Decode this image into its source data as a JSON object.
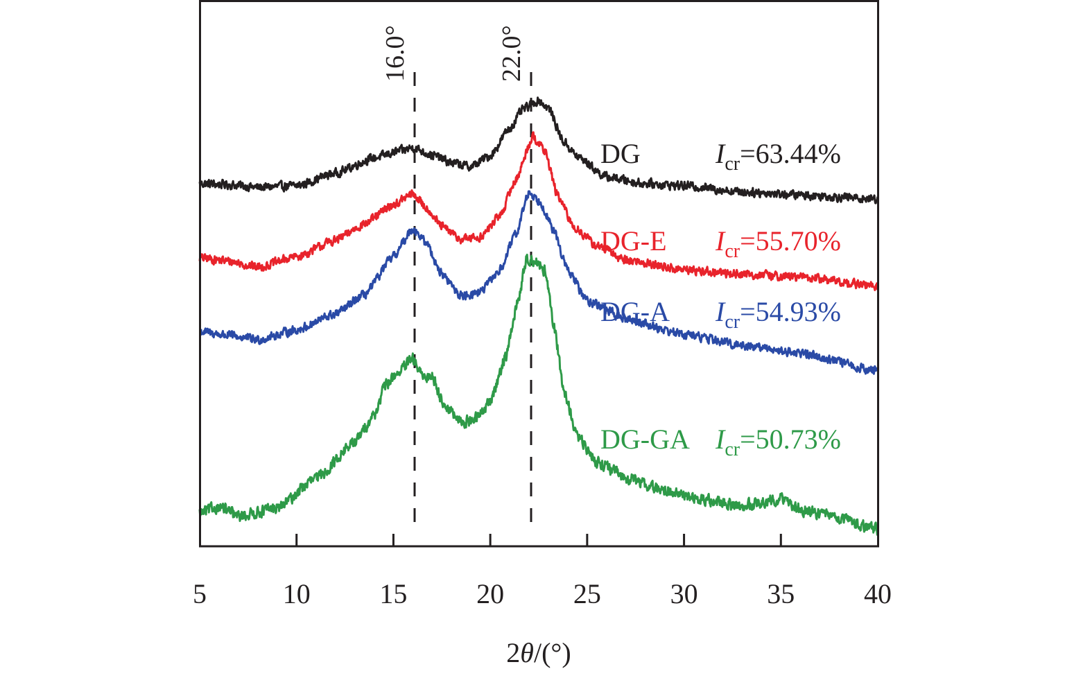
{
  "chart_data": {
    "type": "line",
    "title": "",
    "xlabel": "2θ/(°)",
    "xlabel_parts": {
      "prefix": "2",
      "theta": "θ",
      "suffix": "/(°)"
    },
    "ylabel": "",
    "xlim": [
      5,
      40
    ],
    "ylim": [
      0,
      100
    ],
    "y_ticks_shown": false,
    "grid": false,
    "x_ticks": [
      5,
      10,
      15,
      20,
      25,
      30,
      35,
      40
    ],
    "x_tick_labels": [
      "5",
      "10",
      "15",
      "20",
      "25",
      "30",
      "35",
      "40"
    ],
    "reference_lines": [
      {
        "x": 16.0,
        "label": "16.0°",
        "style": "dashed"
      },
      {
        "x": 22.0,
        "label": "22.0°",
        "style": "dashed"
      }
    ],
    "series": [
      {
        "name": "DG",
        "color": "#231f20",
        "icr_label": "=63.44%",
        "icr_symbol": "I",
        "icr_sub": "cr",
        "points": [
          [
            5,
            66.4
          ],
          [
            6.5,
            66.2
          ],
          [
            8,
            65.7
          ],
          [
            10,
            66.0
          ],
          [
            12,
            68.3
          ],
          [
            14,
            71.1
          ],
          [
            15.5,
            72.5
          ],
          [
            16,
            73.0
          ],
          [
            17,
            71.6
          ],
          [
            18,
            70.2
          ],
          [
            19,
            69.5
          ],
          [
            20,
            71.5
          ],
          [
            21,
            76.5
          ],
          [
            21.7,
            80.0
          ],
          [
            22.5,
            81.6
          ],
          [
            23,
            80.2
          ],
          [
            23.8,
            74.0
          ],
          [
            24.5,
            71.3
          ],
          [
            26,
            67.6
          ],
          [
            28,
            66.4
          ],
          [
            30,
            66.0
          ],
          [
            33,
            64.9
          ],
          [
            36,
            64.3
          ],
          [
            40,
            63.6
          ]
        ]
      },
      {
        "name": "DG-E",
        "color": "#e8232b",
        "icr_label": "=55.70%",
        "icr_symbol": "I",
        "icr_sub": "cr",
        "points": [
          [
            5,
            52.8
          ],
          [
            6.5,
            52.2
          ],
          [
            8,
            51.1
          ],
          [
            10,
            53.0
          ],
          [
            12,
            56.0
          ],
          [
            13.5,
            59.0
          ],
          [
            15,
            62.5
          ],
          [
            16,
            64.5
          ],
          [
            16.7,
            62.0
          ],
          [
            17.5,
            58.5
          ],
          [
            18.5,
            56.2
          ],
          [
            19.5,
            56.6
          ],
          [
            20.5,
            60.5
          ],
          [
            21.3,
            67.0
          ],
          [
            22.2,
            75.0
          ],
          [
            22.8,
            72.5
          ],
          [
            23.5,
            64.0
          ],
          [
            24.3,
            58.5
          ],
          [
            25.5,
            55.0
          ],
          [
            27,
            52.4
          ],
          [
            30,
            50.6
          ],
          [
            33,
            49.8
          ],
          [
            36,
            49.3
          ],
          [
            40,
            47.6
          ]
        ]
      },
      {
        "name": "DG-A",
        "color": "#2a4aa6",
        "icr_label": "=54.93%",
        "icr_symbol": "I",
        "icr_sub": "cr",
        "points": [
          [
            5,
            39.3
          ],
          [
            6.5,
            38.6
          ],
          [
            8,
            37.8
          ],
          [
            10,
            39.6
          ],
          [
            12,
            42.5
          ],
          [
            13.5,
            46.0
          ],
          [
            15,
            53.0
          ],
          [
            16,
            58.2
          ],
          [
            16.7,
            55.5
          ],
          [
            17.5,
            49.8
          ],
          [
            18.5,
            45.8
          ],
          [
            19.5,
            46.6
          ],
          [
            20.5,
            50.5
          ],
          [
            21.3,
            57.0
          ],
          [
            22,
            64.8
          ],
          [
            22.6,
            63.0
          ],
          [
            23.3,
            57.5
          ],
          [
            24,
            50.5
          ],
          [
            25,
            45.0
          ],
          [
            27,
            41.6
          ],
          [
            30,
            38.8
          ],
          [
            33,
            36.8
          ],
          [
            36,
            35.4
          ],
          [
            40,
            32.1
          ]
        ]
      },
      {
        "name": "DG-GA",
        "color": "#2e9a48",
        "icr_label": "=50.73%",
        "icr_symbol": "I",
        "icr_sub": "cr",
        "points": [
          [
            5,
            6.1
          ],
          [
            6,
            7.2
          ],
          [
            7,
            5.5
          ],
          [
            9,
            7.0
          ],
          [
            11,
            12.4
          ],
          [
            13,
            19.0
          ],
          [
            14,
            24.0
          ],
          [
            14.6,
            29.5
          ],
          [
            15.2,
            31.7
          ],
          [
            16,
            34.2
          ],
          [
            16.5,
            31.0
          ],
          [
            17,
            31.2
          ],
          [
            17.6,
            26.0
          ],
          [
            18.5,
            22.6
          ],
          [
            19.3,
            23.5
          ],
          [
            20,
            26.5
          ],
          [
            20.8,
            34.8
          ],
          [
            21.4,
            44.5
          ],
          [
            21.9,
            52.8
          ],
          [
            22.4,
            52.0
          ],
          [
            22.8,
            50.5
          ],
          [
            23.3,
            40.0
          ],
          [
            23.8,
            28.5
          ],
          [
            24.5,
            20.0
          ],
          [
            25.5,
            15.5
          ],
          [
            27,
            12.5
          ],
          [
            29,
            10.2
          ],
          [
            31,
            8.5
          ],
          [
            33,
            7.4
          ],
          [
            35,
            8.7
          ],
          [
            36,
            6.7
          ],
          [
            38,
            5.2
          ],
          [
            40,
            3.0
          ]
        ]
      }
    ]
  }
}
